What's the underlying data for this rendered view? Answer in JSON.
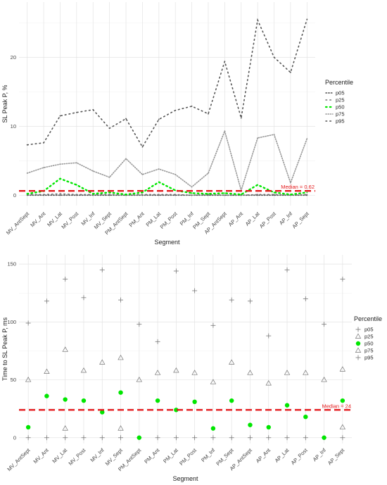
{
  "chart_data": [
    {
      "type": "line",
      "xlabel": "Segment",
      "ylabel": "SL Peak P, %",
      "ylim": [
        -1.5,
        28
      ],
      "yticks": [
        0,
        10,
        20
      ],
      "grid": true,
      "legend_title": "Percentile",
      "legend_position": "right",
      "categories": [
        "MV_AntSept",
        "MV_Ant",
        "MV_Lat",
        "MV_Post",
        "MV_Inf",
        "MV_Sept",
        "PM_AntSept",
        "PM_Ant",
        "PM_Lat",
        "PM_Post",
        "PM_Inf",
        "PM_Sept",
        "AP_AntSept",
        "AP_Ant",
        "AP_Lat",
        "AP_Post",
        "AP_Inf",
        "AP_Sept"
      ],
      "series": [
        {
          "name": "p05",
          "color": "#555555",
          "dash": "dense",
          "values": [
            0.0,
            0.0,
            0.0,
            0.0,
            0.0,
            0.0,
            0.0,
            0.0,
            0.0,
            0.0,
            0.0,
            0.0,
            0.0,
            0.0,
            0.0,
            0.0,
            0.0,
            0.0
          ]
        },
        {
          "name": "p25",
          "color": "#777777",
          "dash": "dot",
          "values": [
            0.1,
            0.1,
            0.2,
            0.1,
            0.1,
            0.1,
            0.0,
            0.1,
            0.1,
            0.1,
            0.0,
            0.1,
            0.0,
            0.0,
            0.1,
            0.1,
            0.0,
            0.1
          ]
        },
        {
          "name": "p50",
          "color": "#00e600",
          "dash": "dot",
          "values": [
            0.2,
            0.6,
            2.4,
            1.5,
            0.2,
            0.4,
            0.1,
            0.4,
            1.9,
            0.7,
            0.3,
            0.2,
            0.3,
            0.1,
            1.5,
            0.4,
            0.1,
            0.4
          ]
        },
        {
          "name": "p75",
          "color": "#999999",
          "dash": "fine",
          "values": [
            3.2,
            4.0,
            4.5,
            4.7,
            3.5,
            2.6,
            5.3,
            3.0,
            3.8,
            3.0,
            1.2,
            3.2,
            9.3,
            0.7,
            8.3,
            8.8,
            1.8,
            8.2
          ]
        },
        {
          "name": "p95",
          "color": "#555555",
          "dash": "dot",
          "values": [
            7.3,
            7.6,
            11.5,
            12.0,
            12.4,
            9.7,
            11.1,
            7.0,
            11.0,
            12.3,
            12.9,
            11.8,
            19.4,
            11.2,
            25.4,
            20.0,
            17.8,
            25.5
          ]
        }
      ],
      "median": {
        "value": 0.62,
        "label": "Median = 0.62",
        "color": "#e41a1c"
      }
    },
    {
      "type": "scatter",
      "xlabel": "Segment",
      "ylabel": "Time to SL Peak P, ms",
      "ylim": [
        -5,
        158
      ],
      "yticks": [
        0,
        50,
        100,
        150
      ],
      "grid": true,
      "legend_title": "Percentile",
      "legend_position": "right",
      "categories": [
        "MV_AntSept",
        "MV_Ant",
        "MV_Lat",
        "MV_Post",
        "MV_Inf",
        "MV_Sept",
        "PM_AntSept",
        "PM_Ant",
        "PM_Lat",
        "PM_Post",
        "PM_Inf",
        "PM_Sept",
        "AP_AntSept",
        "AP_Ant",
        "AP_Lat",
        "AP_Post",
        "AP_Inf",
        "AP_Sept"
      ],
      "series": [
        {
          "name": "p05",
          "shape": "plus",
          "color": "#777777",
          "values": [
            0,
            0,
            0,
            0,
            0,
            0,
            0,
            0,
            0,
            0,
            0,
            0,
            0,
            0,
            0,
            0,
            0,
            0
          ]
        },
        {
          "name": "p25",
          "shape": "triangle",
          "color": "#777777",
          "values": [
            null,
            null,
            8,
            null,
            null,
            8,
            null,
            null,
            null,
            null,
            null,
            null,
            null,
            null,
            null,
            null,
            null,
            9
          ]
        },
        {
          "name": "p50",
          "shape": "circle",
          "color": "#00e600",
          "values": [
            9,
            36,
            33,
            32,
            22,
            39,
            0,
            32,
            24,
            31,
            8,
            32,
            11,
            9,
            28,
            18,
            0,
            32
          ]
        },
        {
          "name": "p75",
          "shape": "triangle",
          "color": "#777777",
          "values": [
            50,
            57,
            76,
            58,
            65,
            69,
            50,
            56,
            58,
            56,
            48,
            65,
            56,
            47,
            56,
            56,
            50,
            59
          ]
        },
        {
          "name": "p95",
          "shape": "plus",
          "color": "#777777",
          "values": [
            99,
            118,
            137,
            121,
            145,
            119,
            98,
            83,
            144,
            127,
            97,
            119,
            118,
            88,
            145,
            120,
            98,
            137
          ]
        }
      ],
      "median": {
        "value": 24,
        "label": "Median = 24",
        "color": "#e41a1c"
      }
    }
  ]
}
